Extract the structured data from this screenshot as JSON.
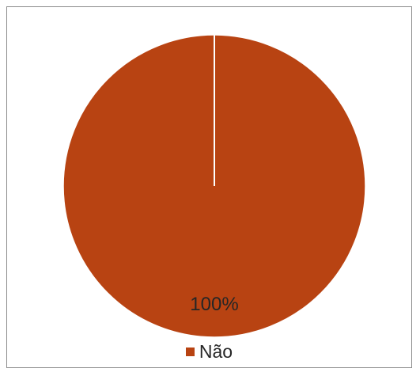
{
  "chart_data": {
    "type": "pie",
    "categories": [
      "Não"
    ],
    "values": [
      1
    ],
    "data_labels": [
      "100%"
    ],
    "colors": [
      "#b84312"
    ],
    "legend": {
      "position": "bottom",
      "entries": [
        {
          "label": "Não",
          "color": "#b84312"
        }
      ]
    }
  }
}
